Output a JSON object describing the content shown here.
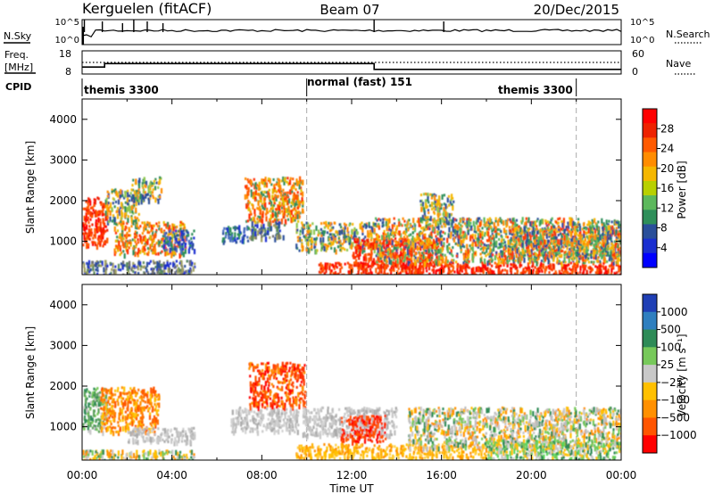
{
  "header": {
    "radar": "Kerguelen (fitACF)",
    "beam": "Beam 07",
    "date": "20/Dec/2015"
  },
  "left_labels": {
    "nsky": "N.Sky",
    "freq_line1": "Freq.",
    "freq_line2": "[MHz]",
    "cpid": "CPID"
  },
  "right_labels": {
    "nsearch": "N.Search",
    "nave": "Nave"
  },
  "cpid_segments": [
    {
      "start_hour": 0,
      "label": "themis 3300"
    },
    {
      "start_hour": 10,
      "label": "normal (fast) 151"
    },
    {
      "start_hour": 22,
      "label": "themis 3300"
    }
  ],
  "cpid_boundaries_hours": [
    10,
    22
  ],
  "axis_x": {
    "title": "Time UT",
    "ticks": [
      "00:00",
      "04:00",
      "08:00",
      "12:00",
      "16:00",
      "20:00",
      "00:00"
    ]
  },
  "axis_y": {
    "title": "Slant Range [km]",
    "ticks": [
      "1000",
      "2000",
      "3000",
      "4000"
    ]
  },
  "power_colorbar": {
    "title": "Power [dB]",
    "labels": [
      "28",
      "24",
      "20",
      "16",
      "12",
      "8",
      "4"
    ],
    "colors": [
      "#ff0000",
      "#ee2200",
      "#ff5a00",
      "#ff8c00",
      "#f5b700",
      "#b8d000",
      "#5cb85c",
      "#2f8f5a",
      "#2a4f9a",
      "#1a2fd0",
      "#0000ff"
    ]
  },
  "velocity_colorbar": {
    "title": "Velocity [m s⁻¹]",
    "labels": [
      "1000",
      "500",
      "100",
      "25",
      "−25",
      "−100",
      "−500",
      "−1000"
    ],
    "colors": [
      "#1f3fb5",
      "#2f7fbf",
      "#2e8b57",
      "#77c95a",
      "#c8c8c8",
      "#ffc000",
      "#ff9000",
      "#ff5500",
      "#ff0000"
    ]
  },
  "chart_data": {
    "type": "heatmap",
    "x_range_hours": [
      0,
      24
    ],
    "y_range_km": [
      180,
      4500
    ],
    "frequency_panel": {
      "freq_axis_labels": [
        "18",
        "8"
      ],
      "nave_axis_labels": [
        "60",
        "0"
      ],
      "freq_segments": [
        {
          "start_hour": 0,
          "end_hour": 1,
          "freq_mhz": 11.0
        },
        {
          "start_hour": 1,
          "end_hour": 13,
          "freq_mhz": 12.5
        },
        {
          "start_hour": 13,
          "end_hour": 24,
          "freq_mhz": 10.0
        }
      ],
      "nave_level": 30
    },
    "noise_panel": {
      "sky_axis_labels": [
        "10^5",
        "10^0"
      ],
      "search_axis_labels": [
        "10^5",
        "10^0"
      ]
    },
    "power_blobs": [
      {
        "t0": 0.0,
        "t1": 5.0,
        "r0": 200,
        "r1": 550,
        "level": "low_mixed"
      },
      {
        "t0": 0.0,
        "t1": 1.1,
        "r0": 900,
        "r1": 2100,
        "level": "high"
      },
      {
        "t0": 1.4,
        "t1": 4.6,
        "r0": 700,
        "r1": 1500,
        "level": "mid_high"
      },
      {
        "t0": 1.0,
        "t1": 2.5,
        "r0": 1500,
        "r1": 2300,
        "level": "mid"
      },
      {
        "t0": 2.2,
        "t1": 3.5,
        "r0": 2000,
        "r1": 2600,
        "level": "mid"
      },
      {
        "t0": 3.6,
        "t1": 5.0,
        "r0": 800,
        "r1": 1300,
        "level": "low"
      },
      {
        "t0": 6.2,
        "t1": 7.4,
        "r0": 1000,
        "r1": 1400,
        "level": "low"
      },
      {
        "t0": 7.2,
        "t1": 9.8,
        "r0": 1500,
        "r1": 2600,
        "level": "mid_high"
      },
      {
        "t0": 7.4,
        "t1": 9.0,
        "r0": 1100,
        "r1": 1500,
        "level": "low_mixed"
      },
      {
        "t0": 9.5,
        "t1": 13.0,
        "r0": 800,
        "r1": 1500,
        "level": "mid"
      },
      {
        "t0": 10.5,
        "t1": 24.0,
        "r0": 200,
        "r1": 500,
        "level": "high"
      },
      {
        "t0": 12.0,
        "t1": 16.0,
        "r0": 400,
        "r1": 1100,
        "level": "high"
      },
      {
        "t0": 13.0,
        "t1": 24.0,
        "r0": 500,
        "r1": 1600,
        "level": "mid_mixed"
      },
      {
        "t0": 15.0,
        "t1": 16.5,
        "r0": 1500,
        "r1": 2200,
        "level": "mid"
      },
      {
        "t0": 19.0,
        "t1": 24.0,
        "r0": 600,
        "r1": 1400,
        "level": "mid_mixed"
      }
    ],
    "velocity_blobs": [
      {
        "t0": 0.0,
        "t1": 5.0,
        "r0": 200,
        "r1": 450,
        "level": "mixed_green"
      },
      {
        "t0": 0.0,
        "t1": 1.1,
        "r0": 900,
        "r1": 2000,
        "level": "green"
      },
      {
        "t0": 0.8,
        "t1": 3.4,
        "r0": 900,
        "r1": 2000,
        "level": "orange"
      },
      {
        "t0": 2.0,
        "t1": 5.0,
        "r0": 650,
        "r1": 1000,
        "level": "grey"
      },
      {
        "t0": 6.6,
        "t1": 9.6,
        "r0": 900,
        "r1": 1500,
        "level": "grey"
      },
      {
        "t0": 7.4,
        "t1": 9.9,
        "r0": 1500,
        "r1": 2600,
        "level": "red_orange"
      },
      {
        "t0": 9.8,
        "t1": 14.0,
        "r0": 800,
        "r1": 1500,
        "level": "grey"
      },
      {
        "t0": 11.5,
        "t1": 13.5,
        "r0": 650,
        "r1": 1300,
        "level": "red"
      },
      {
        "t0": 9.5,
        "t1": 18.0,
        "r0": 250,
        "r1": 600,
        "level": "yellow_orange"
      },
      {
        "t0": 14.5,
        "t1": 24.0,
        "r0": 500,
        "r1": 1500,
        "level": "grey_mixed"
      },
      {
        "t0": 18.0,
        "t1": 24.0,
        "r0": 200,
        "r1": 700,
        "level": "green_mixed"
      }
    ]
  }
}
